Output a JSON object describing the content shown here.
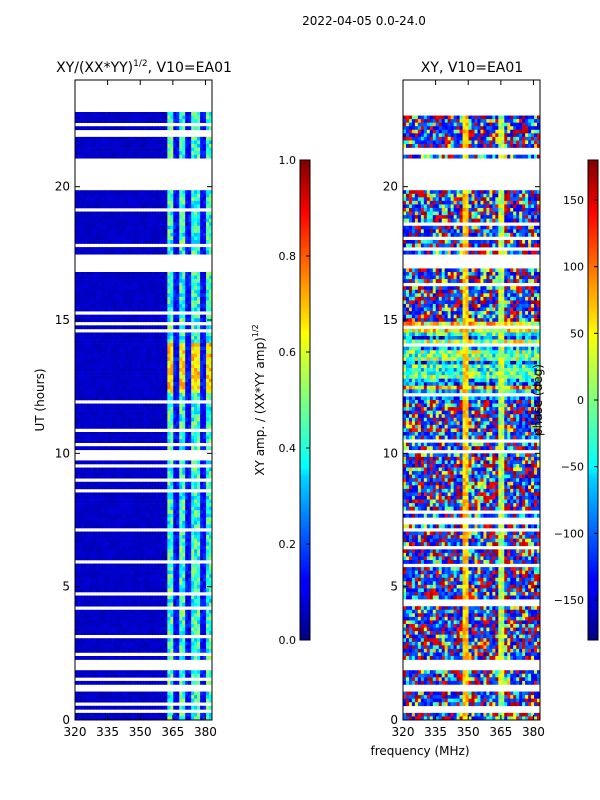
{
  "figure": {
    "suptitle": "2022-04-05 0.0-24.0",
    "xlabel_shared": "frequency (MHz)",
    "ylabel_shared": "UT (hours)"
  },
  "chart_data": [
    {
      "type": "heatmap",
      "title": "XY/(XX*YY)",
      "title_exponent": "1/2",
      "title_suffix": ", V10=EA01",
      "xlabel": "frequency (MHz)",
      "ylabel": "UT (hours)",
      "xlim": [
        320,
        383
      ],
      "ylim": [
        0,
        24
      ],
      "xticks": [
        320,
        335,
        350,
        365,
        380
      ],
      "yticks": [
        0,
        5,
        10,
        15,
        20
      ],
      "colorbar": {
        "label": "XY amp. / (XX*YY amp)",
        "label_exponent": "1/2",
        "range": [
          0.0,
          1.0
        ],
        "ticks": [
          "0.0",
          "0.2",
          "0.4",
          "0.6",
          "0.8",
          "1.0"
        ],
        "colormap": "jet"
      },
      "empty_ut_bands": [
        [
          0.3,
          0.4
        ],
        [
          1.1,
          1.3
        ],
        [
          1.8,
          2.2
        ],
        [
          17.0,
          17.5
        ],
        [
          19.9,
          21.1
        ],
        [
          22.8,
          24.0
        ]
      ],
      "notes": "Low normalized amplitude (~0.05) below 362 MHz; enhanced amplitude 0.3-0.7 in 362-382 MHz columns, peaking near 0.7 around 12.5-14 UT"
    },
    {
      "type": "heatmap",
      "title": "XY, V10=EA01",
      "xlabel": "frequency (MHz)",
      "ylabel": "",
      "xlim": [
        320,
        383
      ],
      "ylim": [
        0,
        24
      ],
      "xticks": [
        320,
        335,
        350,
        365,
        380
      ],
      "yticks": [
        0,
        5,
        10,
        15,
        20
      ],
      "colorbar": {
        "label": "phase (deg)",
        "range": [
          -180,
          180
        ],
        "ticks": [
          "−150",
          "−100",
          "−50",
          "0",
          "50",
          "100",
          "150"
        ],
        "colormap": "jet"
      },
      "empty_ut_bands": [
        [
          0.3,
          0.4
        ],
        [
          1.1,
          1.3
        ],
        [
          1.8,
          2.2
        ],
        [
          17.0,
          17.5
        ],
        [
          19.9,
          21.1
        ],
        [
          22.8,
          24.0
        ]
      ],
      "notes": "Phase wraps noisily across -180..180; vertical bright streaks near 349 MHz and 365 MHz"
    }
  ]
}
